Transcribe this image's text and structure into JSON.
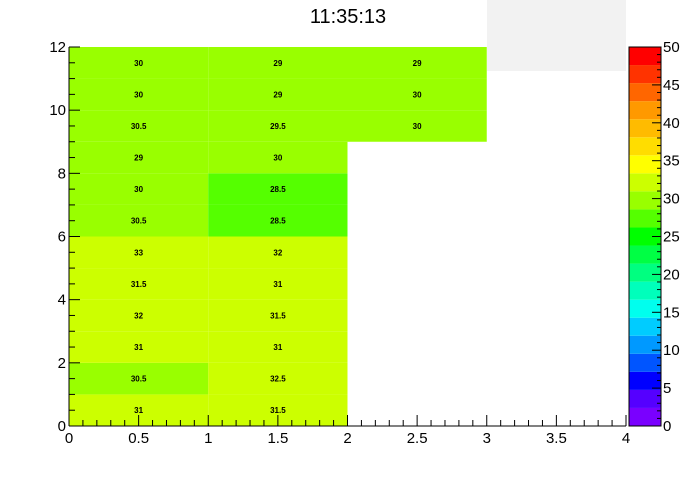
{
  "chart_data": {
    "type": "heatmap",
    "title": "11:35:13",
    "xlabel": "",
    "ylabel": "",
    "xlim": [
      0,
      4
    ],
    "ylim": [
      0,
      12
    ],
    "x_ticks": [
      "0",
      "0.5",
      "1",
      "1.5",
      "2",
      "2.5",
      "3",
      "3.5",
      "4"
    ],
    "y_ticks": [
      "0",
      "2",
      "4",
      "6",
      "8",
      "10",
      "12"
    ],
    "z_range": [
      0,
      50
    ],
    "palette_ticks": [
      "0",
      "5",
      "10",
      "15",
      "20",
      "25",
      "30",
      "35",
      "40",
      "45",
      "50"
    ],
    "cells": [
      {
        "x": [
          0,
          1
        ],
        "y": [
          0,
          1
        ],
        "value": 31,
        "label": "31"
      },
      {
        "x": [
          1,
          2
        ],
        "y": [
          0,
          1
        ],
        "value": 31.5,
        "label": "31.5"
      },
      {
        "x": [
          0,
          1
        ],
        "y": [
          1,
          2
        ],
        "value": 30.5,
        "label": "30.5"
      },
      {
        "x": [
          1,
          2
        ],
        "y": [
          1,
          2
        ],
        "value": 32.5,
        "label": "32.5"
      },
      {
        "x": [
          0,
          1
        ],
        "y": [
          2,
          3
        ],
        "value": 31,
        "label": "31"
      },
      {
        "x": [
          1,
          2
        ],
        "y": [
          2,
          3
        ],
        "value": 31,
        "label": "31"
      },
      {
        "x": [
          0,
          1
        ],
        "y": [
          3,
          4
        ],
        "value": 32,
        "label": "32"
      },
      {
        "x": [
          1,
          2
        ],
        "y": [
          3,
          4
        ],
        "value": 31.5,
        "label": "31.5"
      },
      {
        "x": [
          0,
          1
        ],
        "y": [
          4,
          5
        ],
        "value": 31.5,
        "label": "31.5"
      },
      {
        "x": [
          1,
          2
        ],
        "y": [
          4,
          5
        ],
        "value": 31,
        "label": "31"
      },
      {
        "x": [
          0,
          1
        ],
        "y": [
          5,
          6
        ],
        "value": 33,
        "label": "33"
      },
      {
        "x": [
          1,
          2
        ],
        "y": [
          5,
          6
        ],
        "value": 32,
        "label": "32"
      },
      {
        "x": [
          0,
          1
        ],
        "y": [
          6,
          7
        ],
        "value": 30.5,
        "label": "30.5"
      },
      {
        "x": [
          1,
          2
        ],
        "y": [
          6,
          7
        ],
        "value": 28.5,
        "label": "28.5"
      },
      {
        "x": [
          0,
          1
        ],
        "y": [
          7,
          8
        ],
        "value": 30,
        "label": "30"
      },
      {
        "x": [
          1,
          2
        ],
        "y": [
          7,
          8
        ],
        "value": 28.5,
        "label": "28.5"
      },
      {
        "x": [
          0,
          1
        ],
        "y": [
          8,
          9
        ],
        "value": 29,
        "label": "29"
      },
      {
        "x": [
          1,
          2
        ],
        "y": [
          8,
          9
        ],
        "value": 30,
        "label": "30"
      },
      {
        "x": [
          0,
          1
        ],
        "y": [
          9,
          10
        ],
        "value": 30.5,
        "label": "30.5"
      },
      {
        "x": [
          1,
          2
        ],
        "y": [
          9,
          10
        ],
        "value": 29.5,
        "label": "29.5"
      },
      {
        "x": [
          2,
          3
        ],
        "y": [
          9,
          10
        ],
        "value": 30,
        "label": "30"
      },
      {
        "x": [
          0,
          1
        ],
        "y": [
          10,
          11
        ],
        "value": 30,
        "label": "30"
      },
      {
        "x": [
          1,
          2
        ],
        "y": [
          10,
          11
        ],
        "value": 29,
        "label": "29"
      },
      {
        "x": [
          2,
          3
        ],
        "y": [
          10,
          11
        ],
        "value": 30,
        "label": "30"
      },
      {
        "x": [
          0,
          1
        ],
        "y": [
          11,
          12
        ],
        "value": 30,
        "label": "30"
      },
      {
        "x": [
          1,
          2
        ],
        "y": [
          11,
          12
        ],
        "value": 29,
        "label": "29"
      },
      {
        "x": [
          2,
          3
        ],
        "y": [
          11,
          12
        ],
        "value": 29,
        "label": "29"
      }
    ],
    "palette_colors": [
      "#7a00ff",
      "#5500ff",
      "#0000ff",
      "#0055ff",
      "#0099ff",
      "#00ccff",
      "#00ffee",
      "#00ffbb",
      "#00ff80",
      "#00ff44",
      "#00ff00",
      "#55ff00",
      "#99ff00",
      "#ccff00",
      "#ffff00",
      "#ffdd00",
      "#ffbb00",
      "#ff9900",
      "#ff6600",
      "#ff3300",
      "#ff0000"
    ]
  }
}
